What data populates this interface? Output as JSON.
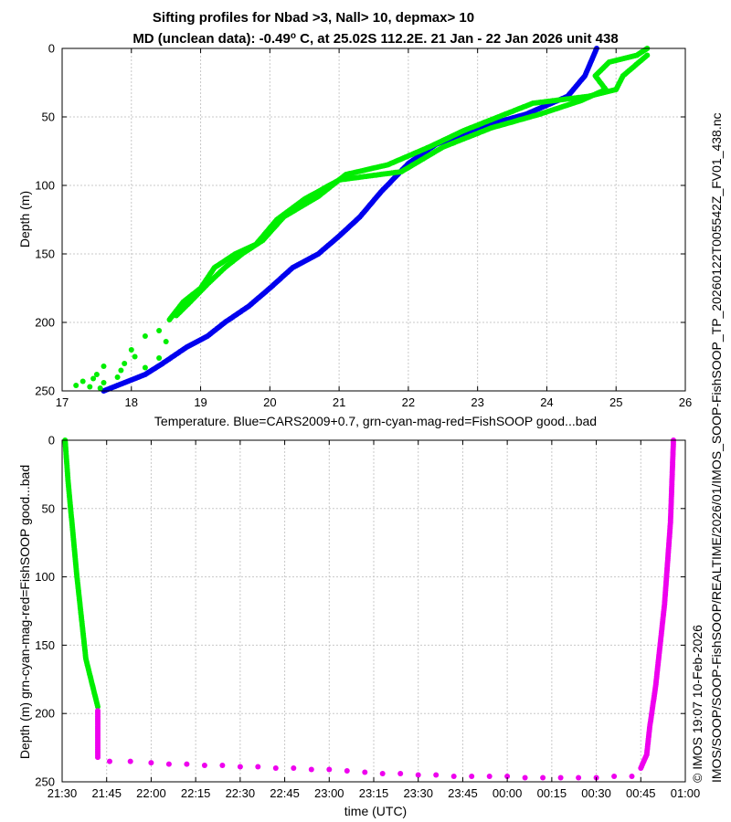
{
  "figure": {
    "title_line1": "Sifting profiles for Nbad >3, Nall> 10, depmax> 10",
    "title_line2_a": "MD (unclean data): -0.49",
    "title_line2_sup": "o",
    "title_line2_b": " C, at 25.02S 112.2E. 21 Jan - 22 Jan 2026 unit 438",
    "side_file": "IMOS/SOOP/SOOP-FishSOOP/REALTIME/2026/01/IMOS_SOOP-FishSOOP_TP_20260122T005542Z_FV01_438.nc",
    "side_stamp": "© IMOS 19:07 10-Feb-2026"
  },
  "colors": {
    "cars": "#0000ee",
    "good": "#00ee00",
    "mag": "#ee00ee",
    "grid": "#c8c8c8"
  },
  "chart_data": [
    {
      "type": "scatter",
      "xlabel": "Temperature. Blue=CARS2009+0.7, grn-cyan-mag-red=FishSOOP good...bad",
      "ylabel": "Depth (m)",
      "xlim": [
        17,
        26
      ],
      "ylim": [
        0,
        250
      ],
      "y_reversed": true,
      "grid": true,
      "x_ticks": [
        "17",
        "18",
        "19",
        "20",
        "21",
        "22",
        "23",
        "24",
        "25",
        "26"
      ],
      "y_ticks": [
        "0",
        "50",
        "100",
        "150",
        "200",
        "250"
      ],
      "series": [
        {
          "color_key": "cars",
          "marker": "dense",
          "points": [
            [
              24.72,
              0
            ],
            [
              24.55,
              20
            ],
            [
              24.3,
              35
            ],
            [
              23.7,
              48
            ],
            [
              23.0,
              58
            ],
            [
              22.4,
              70
            ],
            [
              22.0,
              84
            ],
            [
              21.6,
              105
            ],
            [
              21.3,
              123
            ],
            [
              21.0,
              137
            ],
            [
              20.7,
              150
            ],
            [
              20.33,
              160
            ],
            [
              20.0,
              175
            ],
            [
              19.7,
              188
            ],
            [
              19.35,
              200
            ],
            [
              19.1,
              210
            ],
            [
              18.8,
              218
            ],
            [
              18.45,
              230
            ],
            [
              18.2,
              238
            ],
            [
              17.9,
              244
            ],
            [
              17.6,
              250
            ]
          ]
        },
        {
          "color_key": "good",
          "marker": "dense",
          "points": [
            [
              25.45,
              0
            ],
            [
              25.3,
              5
            ],
            [
              24.9,
              10
            ],
            [
              24.7,
              20
            ],
            [
              24.85,
              30
            ],
            [
              24.5,
              38
            ],
            [
              23.9,
              48
            ],
            [
              23.2,
              58
            ],
            [
              22.5,
              72
            ],
            [
              21.9,
              90
            ],
            [
              21.0,
              96
            ],
            [
              20.5,
              110
            ],
            [
              20.1,
              125
            ],
            [
              19.8,
              143
            ],
            [
              19.5,
              150
            ],
            [
              19.2,
              160
            ],
            [
              19.0,
              175
            ],
            [
              18.75,
              185
            ],
            [
              18.55,
              198
            ]
          ]
        },
        {
          "color_key": "good",
          "marker": "dense",
          "points": [
            [
              25.45,
              5
            ],
            [
              25.1,
              20
            ],
            [
              25.0,
              30
            ],
            [
              24.6,
              35
            ],
            [
              23.8,
              40
            ],
            [
              23.3,
              50
            ],
            [
              22.8,
              60
            ],
            [
              22.3,
              72
            ],
            [
              21.7,
              85
            ],
            [
              21.1,
              92
            ],
            [
              20.7,
              108
            ],
            [
              20.2,
              123
            ],
            [
              19.9,
              140
            ],
            [
              19.6,
              150
            ],
            [
              19.35,
              160
            ],
            [
              19.1,
              172
            ],
            [
              18.85,
              185
            ],
            [
              18.65,
              195
            ]
          ]
        },
        {
          "color_key": "good",
          "marker": "sparse",
          "points": [
            [
              18.4,
              206
            ],
            [
              18.2,
              210
            ],
            [
              18.5,
              214
            ],
            [
              18.0,
              220
            ],
            [
              18.4,
              226
            ],
            [
              17.9,
              230
            ],
            [
              17.6,
              232
            ],
            [
              18.2,
              233
            ],
            [
              17.5,
              238
            ],
            [
              17.8,
              240
            ],
            [
              17.3,
              243
            ],
            [
              17.6,
              244
            ],
            [
              17.2,
              246
            ],
            [
              17.4,
              247
            ],
            [
              17.55,
              248
            ],
            [
              17.85,
              235
            ],
            [
              18.05,
              225
            ],
            [
              17.45,
              241
            ]
          ]
        }
      ]
    },
    {
      "type": "scatter",
      "xlabel": "time (UTC)",
      "ylabel": "Depth (m) grn-cyan-mag-red=FishSOOP good...bad",
      "xlim": [
        "21:30",
        "01:00"
      ],
      "ylim": [
        0,
        250
      ],
      "y_reversed": true,
      "grid": true,
      "x_ticks": [
        "21:30",
        "21:45",
        "22:00",
        "22:15",
        "22:30",
        "22:45",
        "23:00",
        "23:15",
        "23:30",
        "23:45",
        "00:00",
        "00:15",
        "00:30",
        "00:45",
        "01:00"
      ],
      "y_ticks": [
        "0",
        "50",
        "100",
        "150",
        "200",
        "250"
      ],
      "series": [
        {
          "color_key": "good",
          "marker": "dense",
          "points": [
            [
              "21:31",
              0
            ],
            [
              "21:32",
              30
            ],
            [
              "21:35",
              100
            ],
            [
              "21:38",
              160
            ],
            [
              "21:42",
              195
            ]
          ]
        },
        {
          "color_key": "mag",
          "marker": "dense",
          "points": [
            [
              "21:42",
              198
            ],
            [
              "21:42",
              215
            ],
            [
              "21:42",
              232
            ]
          ]
        },
        {
          "color_key": "mag",
          "marker": "sparse",
          "points": [
            [
              "21:46",
              235
            ],
            [
              "21:53",
              235
            ],
            [
              "22:00",
              236
            ],
            [
              "22:06",
              237
            ],
            [
              "22:12",
              237
            ],
            [
              "22:18",
              238
            ],
            [
              "22:24",
              238
            ],
            [
              "22:30",
              239
            ],
            [
              "22:36",
              239
            ],
            [
              "22:42",
              240
            ],
            [
              "22:48",
              240
            ],
            [
              "22:54",
              241
            ],
            [
              "23:00",
              241
            ],
            [
              "23:06",
              242
            ],
            [
              "23:12",
              243
            ],
            [
              "23:18",
              244
            ],
            [
              "23:24",
              244
            ],
            [
              "23:30",
              245
            ],
            [
              "23:36",
              245
            ],
            [
              "23:42",
              246
            ],
            [
              "23:48",
              246
            ],
            [
              "23:54",
              246
            ],
            [
              "24:00",
              246
            ],
            [
              "24:06",
              247
            ],
            [
              "24:12",
              247
            ],
            [
              "24:18",
              247
            ],
            [
              "24:24",
              247
            ],
            [
              "24:30",
              247
            ],
            [
              "24:36",
              246
            ],
            [
              "24:42",
              246
            ]
          ]
        },
        {
          "color_key": "mag",
          "marker": "dense",
          "points": [
            [
              "24:45",
              240
            ],
            [
              "24:47",
              230
            ],
            [
              "24:48",
              210
            ],
            [
              "24:50",
              180
            ],
            [
              "24:53",
              120
            ],
            [
              "24:55",
              60
            ],
            [
              "24:56",
              0
            ]
          ]
        }
      ]
    }
  ]
}
